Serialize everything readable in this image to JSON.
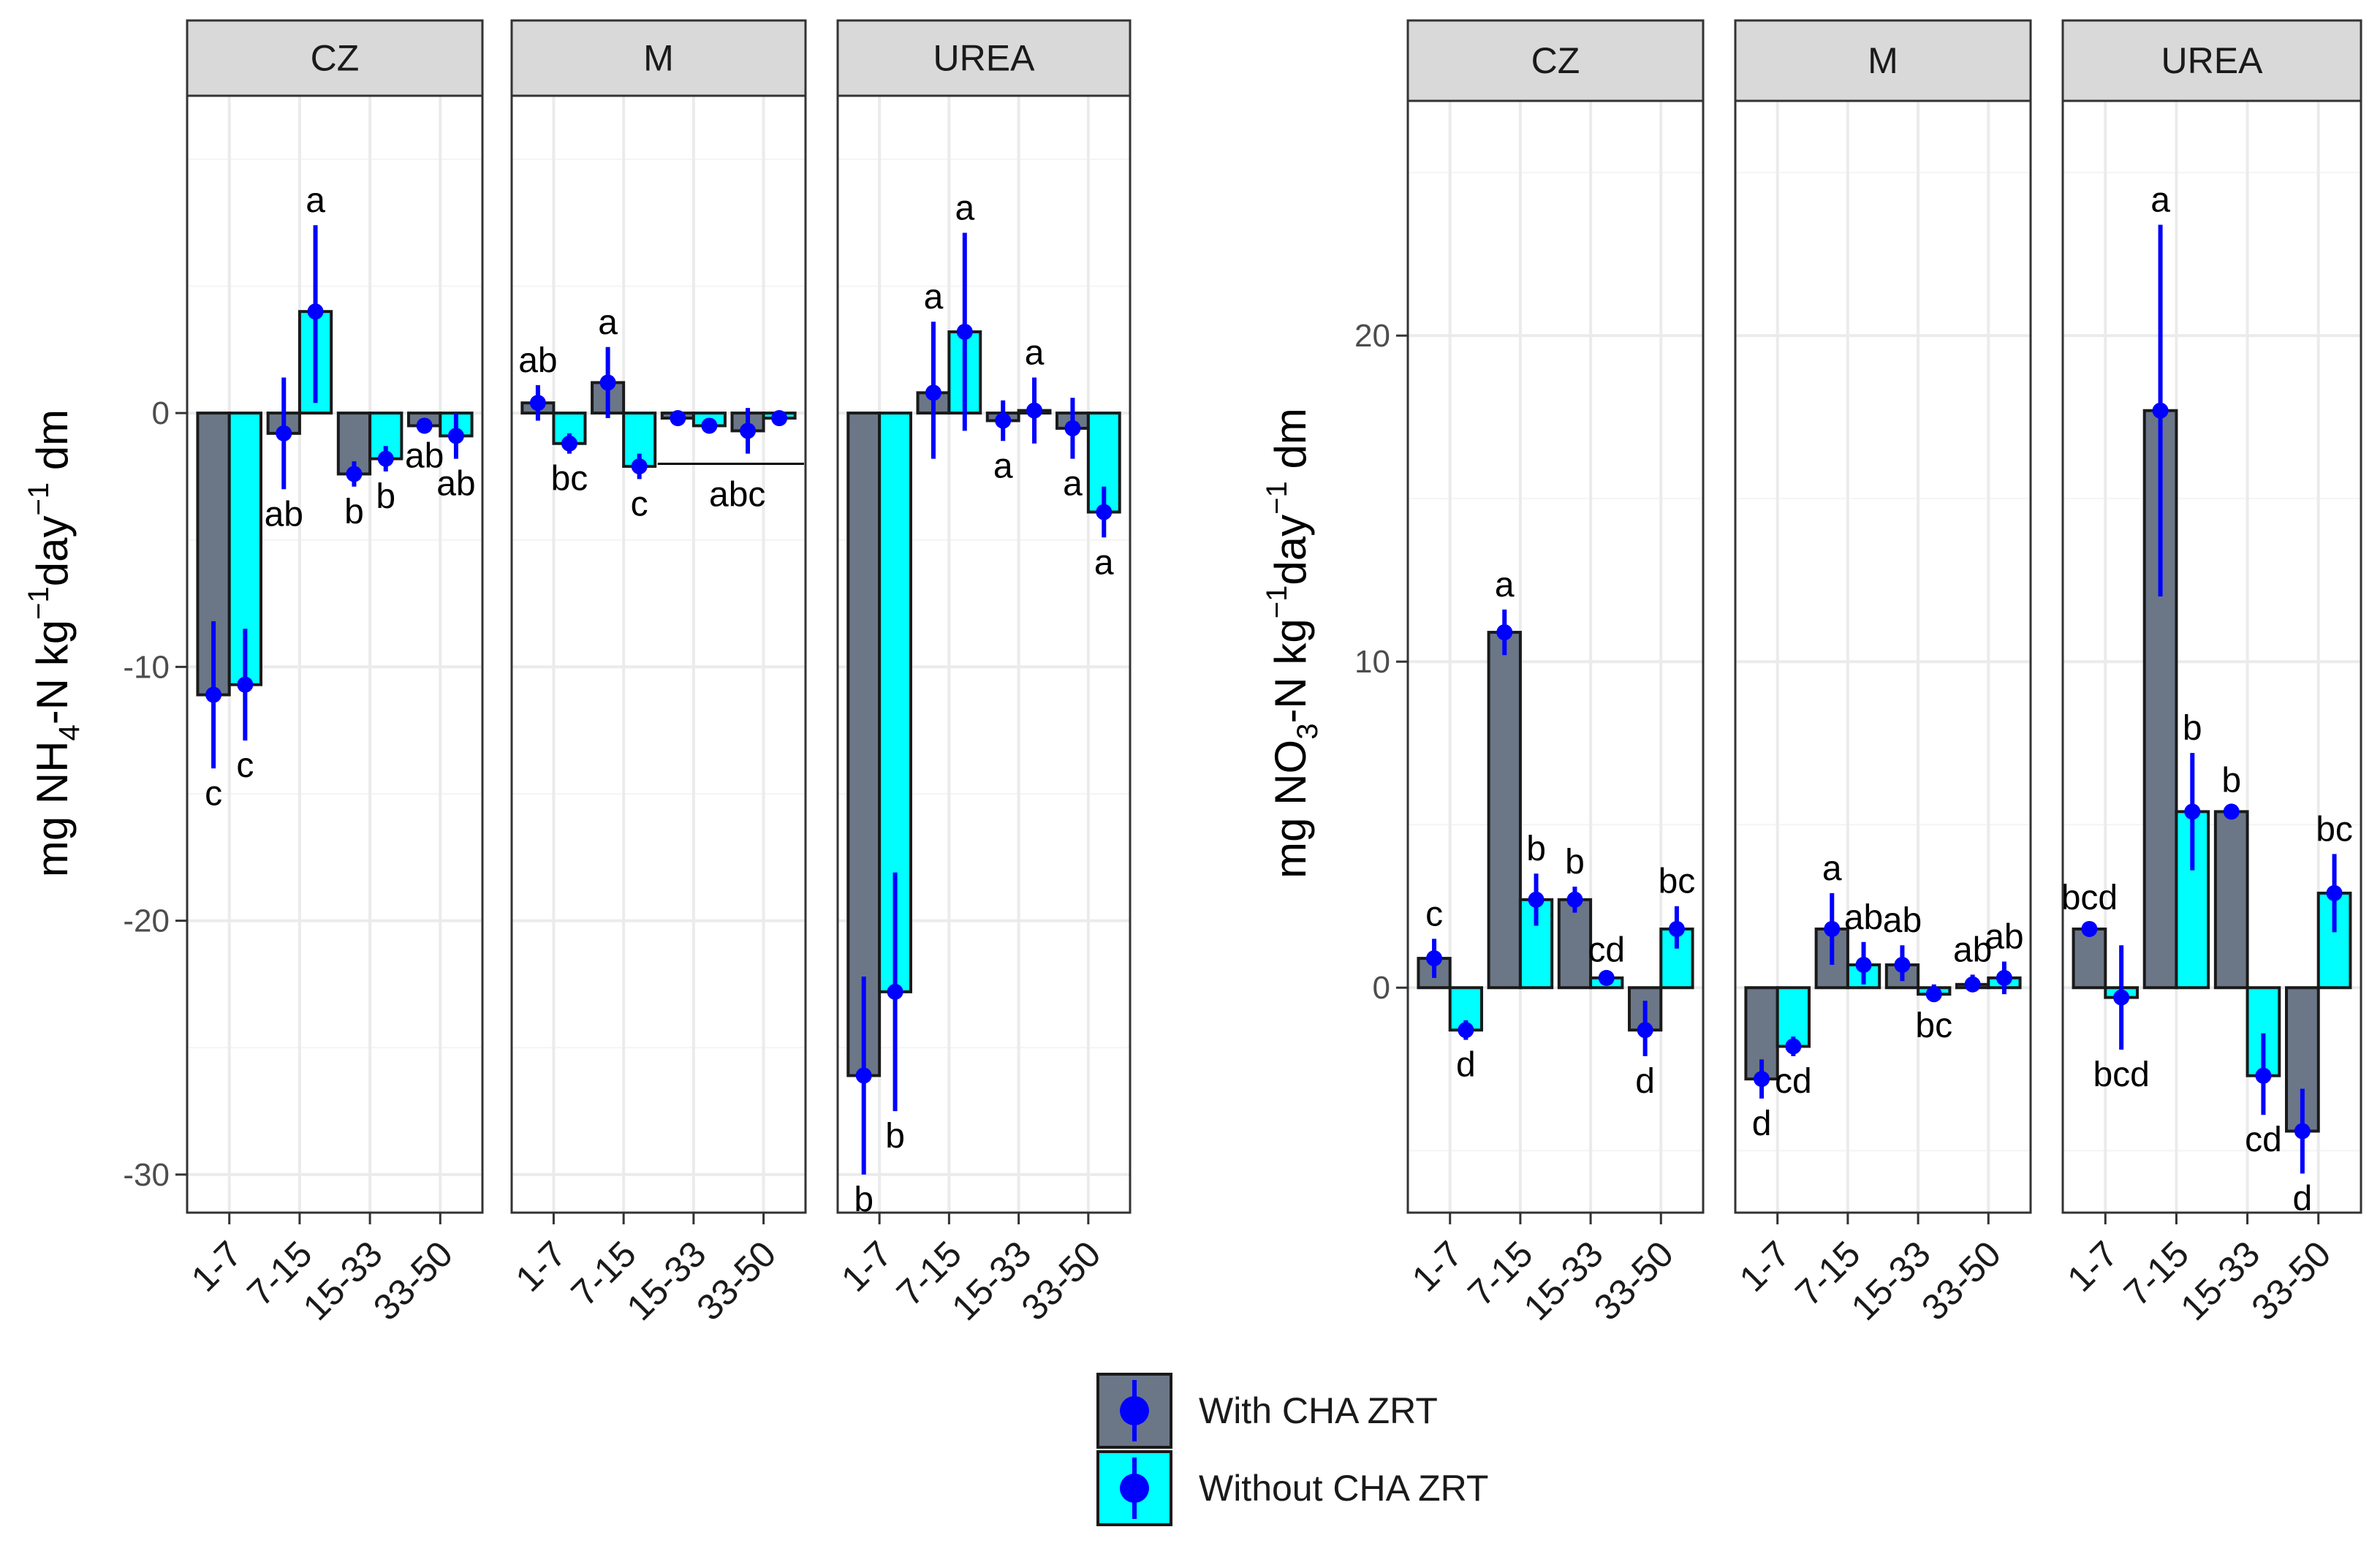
{
  "chart_data": [
    {
      "type": "bar",
      "id": "nh4",
      "ylabel": {
        "prefix": "mg NH",
        "sub": "4",
        "mid": "-N kg",
        "sup1": "−1",
        "mid2": "day",
        "sup2": "−1",
        "suffix": " dm"
      },
      "ylim": [
        -31.5,
        12.5
      ],
      "yticks": [
        0,
        -10,
        -20,
        -30
      ],
      "categories": [
        "1-7",
        "7-15",
        "15-33",
        "33-50"
      ],
      "panels": [
        {
          "label": "CZ",
          "with": [
            -11.1,
            -0.8,
            -2.4,
            -0.5
          ],
          "with_err": [
            [
              -14.0,
              -8.2
            ],
            [
              -3.0,
              1.4
            ],
            [
              -2.9,
              -1.9
            ],
            [
              -0.7,
              -0.3
            ]
          ],
          "with_sig": [
            "c",
            "ab",
            "b",
            "ab"
          ],
          "without": [
            -10.7,
            4.0,
            -1.8,
            -0.9
          ],
          "without_err": [
            [
              -12.9,
              -8.5
            ],
            [
              0.4,
              7.4
            ],
            [
              -2.3,
              -1.3
            ],
            [
              -1.8,
              0.0
            ]
          ],
          "without_sig": [
            "c",
            "a",
            "b",
            "ab"
          ]
        },
        {
          "label": "M",
          "with": [
            0.4,
            1.2,
            -0.2,
            -0.7
          ],
          "with_err": [
            [
              -0.3,
              1.1
            ],
            [
              -0.2,
              2.6
            ],
            [
              -0.3,
              -0.1
            ],
            [
              -1.6,
              0.2
            ]
          ],
          "with_sig": [
            "ab",
            "a",
            "",
            ""
          ],
          "without": [
            -1.2,
            -2.1,
            -0.5,
            -0.2
          ],
          "without_err": [
            [
              -1.6,
              -0.8
            ],
            [
              -2.6,
              -1.6
            ],
            [
              -0.6,
              -0.4
            ],
            [
              -0.3,
              -0.1
            ]
          ],
          "without_sig": [
            "bc",
            "c",
            "",
            ""
          ],
          "group_label": "abc"
        },
        {
          "label": "UREA",
          "with": [
            -26.1,
            0.8,
            -0.3,
            -0.6
          ],
          "with_err": [
            [
              -30.0,
              -22.2
            ],
            [
              -1.8,
              3.6
            ],
            [
              -1.1,
              0.5
            ],
            [
              -1.8,
              0.6
            ]
          ],
          "with_sig": [
            "b",
            "a",
            "a",
            "a"
          ],
          "without": [
            -22.8,
            3.2,
            0.1,
            -3.9
          ],
          "without_err": [
            [
              -27.5,
              -18.1
            ],
            [
              -0.7,
              7.1
            ],
            [
              -1.2,
              1.4
            ],
            [
              -4.9,
              -2.9
            ]
          ],
          "without_sig": [
            "b",
            "a",
            "a",
            "a"
          ]
        }
      ]
    },
    {
      "type": "bar",
      "id": "no3",
      "ylabel": {
        "prefix": "mg NO",
        "sub": "3",
        "mid": "-N kg",
        "sup1": "−1",
        "mid2": "day",
        "sup2": "−1",
        "suffix": " dm"
      },
      "ylim": [
        -6.9,
        27.2
      ],
      "yticks": [
        0,
        10,
        20
      ],
      "categories": [
        "1-7",
        "7-15",
        "15-33",
        "33-50"
      ],
      "panels": [
        {
          "label": "CZ",
          "with": [
            0.9,
            10.9,
            2.7,
            -1.3
          ],
          "with_err": [
            [
              0.3,
              1.5
            ],
            [
              10.2,
              11.6
            ],
            [
              2.3,
              3.1
            ],
            [
              -2.1,
              -0.4
            ]
          ],
          "with_sig": [
            "c",
            "a",
            "b",
            "d"
          ],
          "without": [
            -1.3,
            2.7,
            0.3,
            1.8
          ],
          "without_err": [
            [
              -1.6,
              -1.0
            ],
            [
              1.9,
              3.5
            ],
            [
              0.2,
              0.4
            ],
            [
              1.2,
              2.5
            ]
          ],
          "without_sig": [
            "d",
            "b",
            "cd",
            "bc"
          ]
        },
        {
          "label": "M",
          "with": [
            -2.8,
            1.8,
            0.7,
            0.1
          ],
          "with_err": [
            [
              -3.4,
              -2.2
            ],
            [
              0.7,
              2.9
            ],
            [
              0.2,
              1.3
            ],
            [
              -0.1,
              0.4
            ]
          ],
          "with_sig": [
            "d",
            "a",
            "ab",
            "ab"
          ],
          "without": [
            -1.8,
            0.7,
            -0.2,
            0.3
          ],
          "without_err": [
            [
              -2.1,
              -1.5
            ],
            [
              0.1,
              1.4
            ],
            [
              -0.4,
              0.1
            ],
            [
              -0.2,
              0.8
            ]
          ],
          "without_sig": [
            "cd",
            "ab",
            "bc",
            "ab"
          ]
        },
        {
          "label": "UREA",
          "with": [
            1.8,
            17.7,
            5.4,
            -4.4
          ],
          "with_err": [
            [
              1.6,
              2.0
            ],
            [
              12.0,
              23.4
            ],
            [
              5.2,
              5.6
            ],
            [
              -5.7,
              -3.1
            ]
          ],
          "with_sig": [
            "bcd",
            "a",
            "b",
            "d"
          ],
          "without": [
            -0.3,
            5.4,
            -2.7,
            2.9
          ],
          "without_err": [
            [
              -1.9,
              1.3
            ],
            [
              3.6,
              7.2
            ],
            [
              -3.9,
              -1.4
            ],
            [
              1.7,
              4.1
            ]
          ],
          "without_sig": [
            "bcd",
            "b",
            "cd",
            "bc"
          ]
        }
      ]
    }
  ],
  "legend": {
    "items": [
      {
        "label": "With CHA ZRT",
        "fill": "#6b7787"
      },
      {
        "label": "Without CHA ZRT",
        "fill": "#00ffff"
      }
    ]
  },
  "colors": {
    "with_fill": "#6b7787",
    "without_fill": "#00ffff",
    "point": "#0000ff",
    "strip_bg": "#d9d9d9",
    "grid": "#ebebeb"
  }
}
